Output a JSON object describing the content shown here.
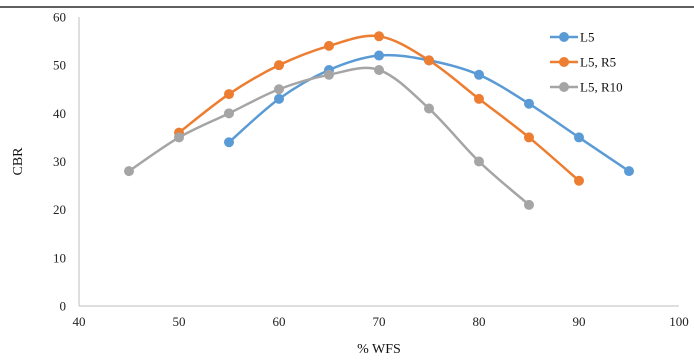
{
  "chart_data": {
    "type": "line",
    "title": "",
    "xlabel": "% WFS",
    "ylabel": "CBR",
    "xlim": [
      40,
      100
    ],
    "ylim": [
      0,
      60
    ],
    "xticks": [
      40,
      50,
      60,
      70,
      80,
      90,
      100
    ],
    "yticks": [
      0,
      10,
      20,
      30,
      40,
      50,
      60
    ],
    "grid": false,
    "legend_position": "top-right",
    "smooth": true,
    "series": [
      {
        "name": "L5",
        "color": "#5b9bd5",
        "x": [
          55,
          60,
          65,
          70,
          75,
          80,
          85,
          90,
          95
        ],
        "y": [
          34,
          43,
          49,
          52,
          51,
          48,
          42,
          35,
          28
        ]
      },
      {
        "name": "L5, R5",
        "color": "#ed7d31",
        "x": [
          50,
          55,
          60,
          65,
          70,
          75,
          80,
          85,
          90
        ],
        "y": [
          36,
          44,
          50,
          54,
          56,
          51,
          43,
          35,
          26
        ]
      },
      {
        "name": "L5, R10",
        "color": "#a5a5a5",
        "x": [
          45,
          50,
          55,
          60,
          65,
          70,
          75,
          80,
          85
        ],
        "y": [
          28,
          35,
          40,
          45,
          48,
          49,
          41,
          30,
          21
        ]
      }
    ]
  }
}
